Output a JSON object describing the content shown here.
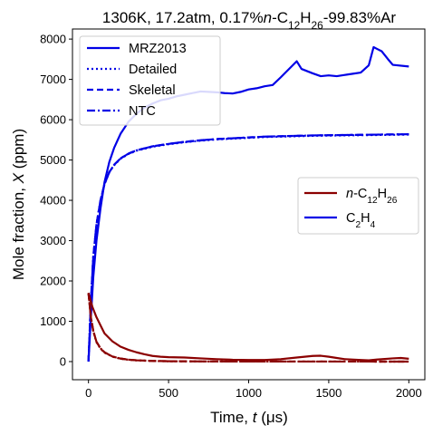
{
  "chart_data": {
    "type": "line",
    "title_parts": [
      {
        "t": "1306K, 17.2atm, 0.17%"
      },
      {
        "t": "n",
        "style": "italic"
      },
      {
        "t": "-C"
      },
      {
        "t": "12",
        "style": "sub"
      },
      {
        "t": "H"
      },
      {
        "t": "26",
        "style": "sub"
      },
      {
        "t": "-99.83%Ar"
      }
    ],
    "xlabel_parts": [
      {
        "t": "Time, "
      },
      {
        "t": "t",
        "style": "italic"
      },
      {
        "t": " (μs)"
      }
    ],
    "ylabel_parts": [
      {
        "t": "Mole fraction, "
      },
      {
        "t": "X",
        "style": "italic"
      },
      {
        "t": " (ppm)"
      }
    ],
    "xlim": [
      -100,
      2100
    ],
    "ylim": [
      -450,
      8250
    ],
    "xticks": [
      0,
      500,
      1000,
      1500,
      2000
    ],
    "yticks": [
      0,
      1000,
      2000,
      3000,
      4000,
      5000,
      6000,
      7000,
      8000
    ],
    "grid": false,
    "colors": {
      "c12h26": "#8b0000",
      "c2h4": "#0000e6"
    },
    "legend_models": {
      "placement": "upper-left",
      "entries": [
        {
          "label_parts": [
            {
              "t": "MRZ2013"
            }
          ],
          "style": "solid"
        },
        {
          "label_parts": [
            {
              "t": "Detailed"
            }
          ],
          "style": "dotted"
        },
        {
          "label_parts": [
            {
              "t": "Skeletal"
            }
          ],
          "style": "dashed"
        },
        {
          "label_parts": [
            {
              "t": "NTC"
            }
          ],
          "style": "dashdot"
        }
      ]
    },
    "legend_species": {
      "placement": "center-right",
      "entries": [
        {
          "key": "c12h26",
          "label_parts": [
            {
              "t": "n",
              "style": "italic"
            },
            {
              "t": "-C"
            },
            {
              "t": "12",
              "style": "sub"
            },
            {
              "t": "H"
            },
            {
              "t": "26",
              "style": "sub"
            }
          ]
        },
        {
          "key": "c2h4",
          "label_parts": [
            {
              "t": "C"
            },
            {
              "t": "2",
              "style": "sub"
            },
            {
              "t": "H"
            },
            {
              "t": "4",
              "style": "sub"
            }
          ]
        }
      ]
    },
    "series": [
      {
        "species": "c2h4",
        "model": "MRZ2013",
        "style": "solid",
        "x": [
          0,
          15,
          30,
          50,
          75,
          100,
          130,
          160,
          200,
          250,
          300,
          350,
          400,
          450,
          500,
          550,
          600,
          650,
          700,
          750,
          800,
          850,
          900,
          950,
          1000,
          1050,
          1100,
          1150,
          1200,
          1250,
          1300,
          1330,
          1400,
          1450,
          1500,
          1550,
          1600,
          1650,
          1700,
          1750,
          1780,
          1800,
          1830,
          1870,
          1900,
          2000
        ],
        "y": [
          0,
          1100,
          2100,
          3000,
          3800,
          4450,
          4950,
          5300,
          5650,
          5950,
          6150,
          6300,
          6400,
          6480,
          6520,
          6580,
          6620,
          6660,
          6700,
          6690,
          6680,
          6660,
          6650,
          6690,
          6750,
          6780,
          6830,
          6860,
          7050,
          7250,
          7450,
          7260,
          7150,
          7080,
          7100,
          7080,
          7110,
          7140,
          7170,
          7350,
          7800,
          7760,
          7700,
          7500,
          7360,
          7320
        ]
      },
      {
        "species": "c2h4",
        "model": "Detailed",
        "style": "dotted",
        "x": [
          0,
          15,
          30,
          50,
          75,
          100,
          130,
          160,
          200,
          250,
          300,
          400,
          500,
          600,
          700,
          800,
          900,
          1000,
          1100,
          1200,
          1300,
          1400,
          1500,
          1600,
          1700,
          1800,
          1900,
          2000
        ],
        "y": [
          0,
          1500,
          2600,
          3400,
          4000,
          4400,
          4700,
          4870,
          5030,
          5150,
          5230,
          5330,
          5390,
          5440,
          5480,
          5510,
          5530,
          5550,
          5570,
          5580,
          5590,
          5600,
          5605,
          5610,
          5615,
          5620,
          5625,
          5630
        ]
      },
      {
        "species": "c2h4",
        "model": "Skeletal",
        "style": "dashed",
        "x": [
          0,
          15,
          30,
          50,
          75,
          100,
          130,
          160,
          200,
          250,
          300,
          400,
          500,
          600,
          700,
          800,
          900,
          1000,
          1100,
          1200,
          1300,
          1400,
          1500,
          1600,
          1700,
          1800,
          1900,
          2000
        ],
        "y": [
          0,
          1500,
          2600,
          3400,
          4000,
          4400,
          4700,
          4880,
          5040,
          5160,
          5240,
          5340,
          5400,
          5450,
          5490,
          5520,
          5540,
          5560,
          5580,
          5590,
          5600,
          5610,
          5615,
          5620,
          5625,
          5630,
          5635,
          5640
        ]
      },
      {
        "species": "c2h4",
        "model": "NTC",
        "style": "dashdot",
        "x": [
          0,
          15,
          30,
          50,
          75,
          100,
          130,
          160,
          200,
          250,
          300,
          400,
          500,
          600,
          700,
          800,
          900,
          1000,
          1100,
          1200,
          1300,
          1400,
          1500,
          1600,
          1700,
          1800,
          1900,
          2000
        ],
        "y": [
          0,
          1500,
          2600,
          3400,
          4000,
          4400,
          4700,
          4880,
          5040,
          5160,
          5240,
          5340,
          5400,
          5450,
          5490,
          5520,
          5540,
          5560,
          5580,
          5590,
          5600,
          5610,
          5615,
          5620,
          5625,
          5630,
          5635,
          5640
        ]
      },
      {
        "species": "c12h26",
        "model": "MRZ2013",
        "style": "solid",
        "x": [
          0,
          25,
          50,
          75,
          100,
          150,
          200,
          250,
          300,
          350,
          400,
          450,
          500,
          600,
          700,
          800,
          900,
          1000,
          1100,
          1200,
          1300,
          1400,
          1450,
          1500,
          1550,
          1600,
          1700,
          1750,
          1800,
          1900,
          1950,
          2000
        ],
        "y": [
          1700,
          1350,
          1100,
          900,
          700,
          500,
          370,
          290,
          230,
          180,
          140,
          120,
          110,
          100,
          80,
          60,
          45,
          40,
          40,
          60,
          100,
          140,
          145,
          120,
          90,
          60,
          40,
          30,
          50,
          80,
          90,
          70
        ]
      },
      {
        "species": "c12h26",
        "model": "Detailed",
        "style": "dotted",
        "x": [
          0,
          15,
          30,
          50,
          75,
          100,
          150,
          200,
          250,
          300,
          400,
          500,
          700,
          1000,
          1500,
          2000
        ],
        "y": [
          1700,
          1100,
          750,
          480,
          320,
          220,
          120,
          70,
          45,
          30,
          15,
          8,
          3,
          2,
          1,
          0
        ]
      },
      {
        "species": "c12h26",
        "model": "Skeletal",
        "style": "dashed",
        "x": [
          0,
          15,
          30,
          50,
          75,
          100,
          150,
          200,
          250,
          300,
          400,
          500,
          700,
          1000,
          1500,
          2000
        ],
        "y": [
          1700,
          1100,
          760,
          490,
          330,
          230,
          125,
          75,
          48,
          32,
          16,
          9,
          4,
          2,
          1,
          0
        ]
      },
      {
        "species": "c12h26",
        "model": "NTC",
        "style": "dashdot",
        "x": [
          0,
          15,
          30,
          50,
          75,
          100,
          150,
          200,
          250,
          300,
          400,
          500,
          700,
          1000,
          1500,
          2000
        ],
        "y": [
          1700,
          1100,
          760,
          490,
          330,
          230,
          125,
          75,
          48,
          32,
          16,
          9,
          4,
          2,
          1,
          0
        ]
      }
    ]
  }
}
